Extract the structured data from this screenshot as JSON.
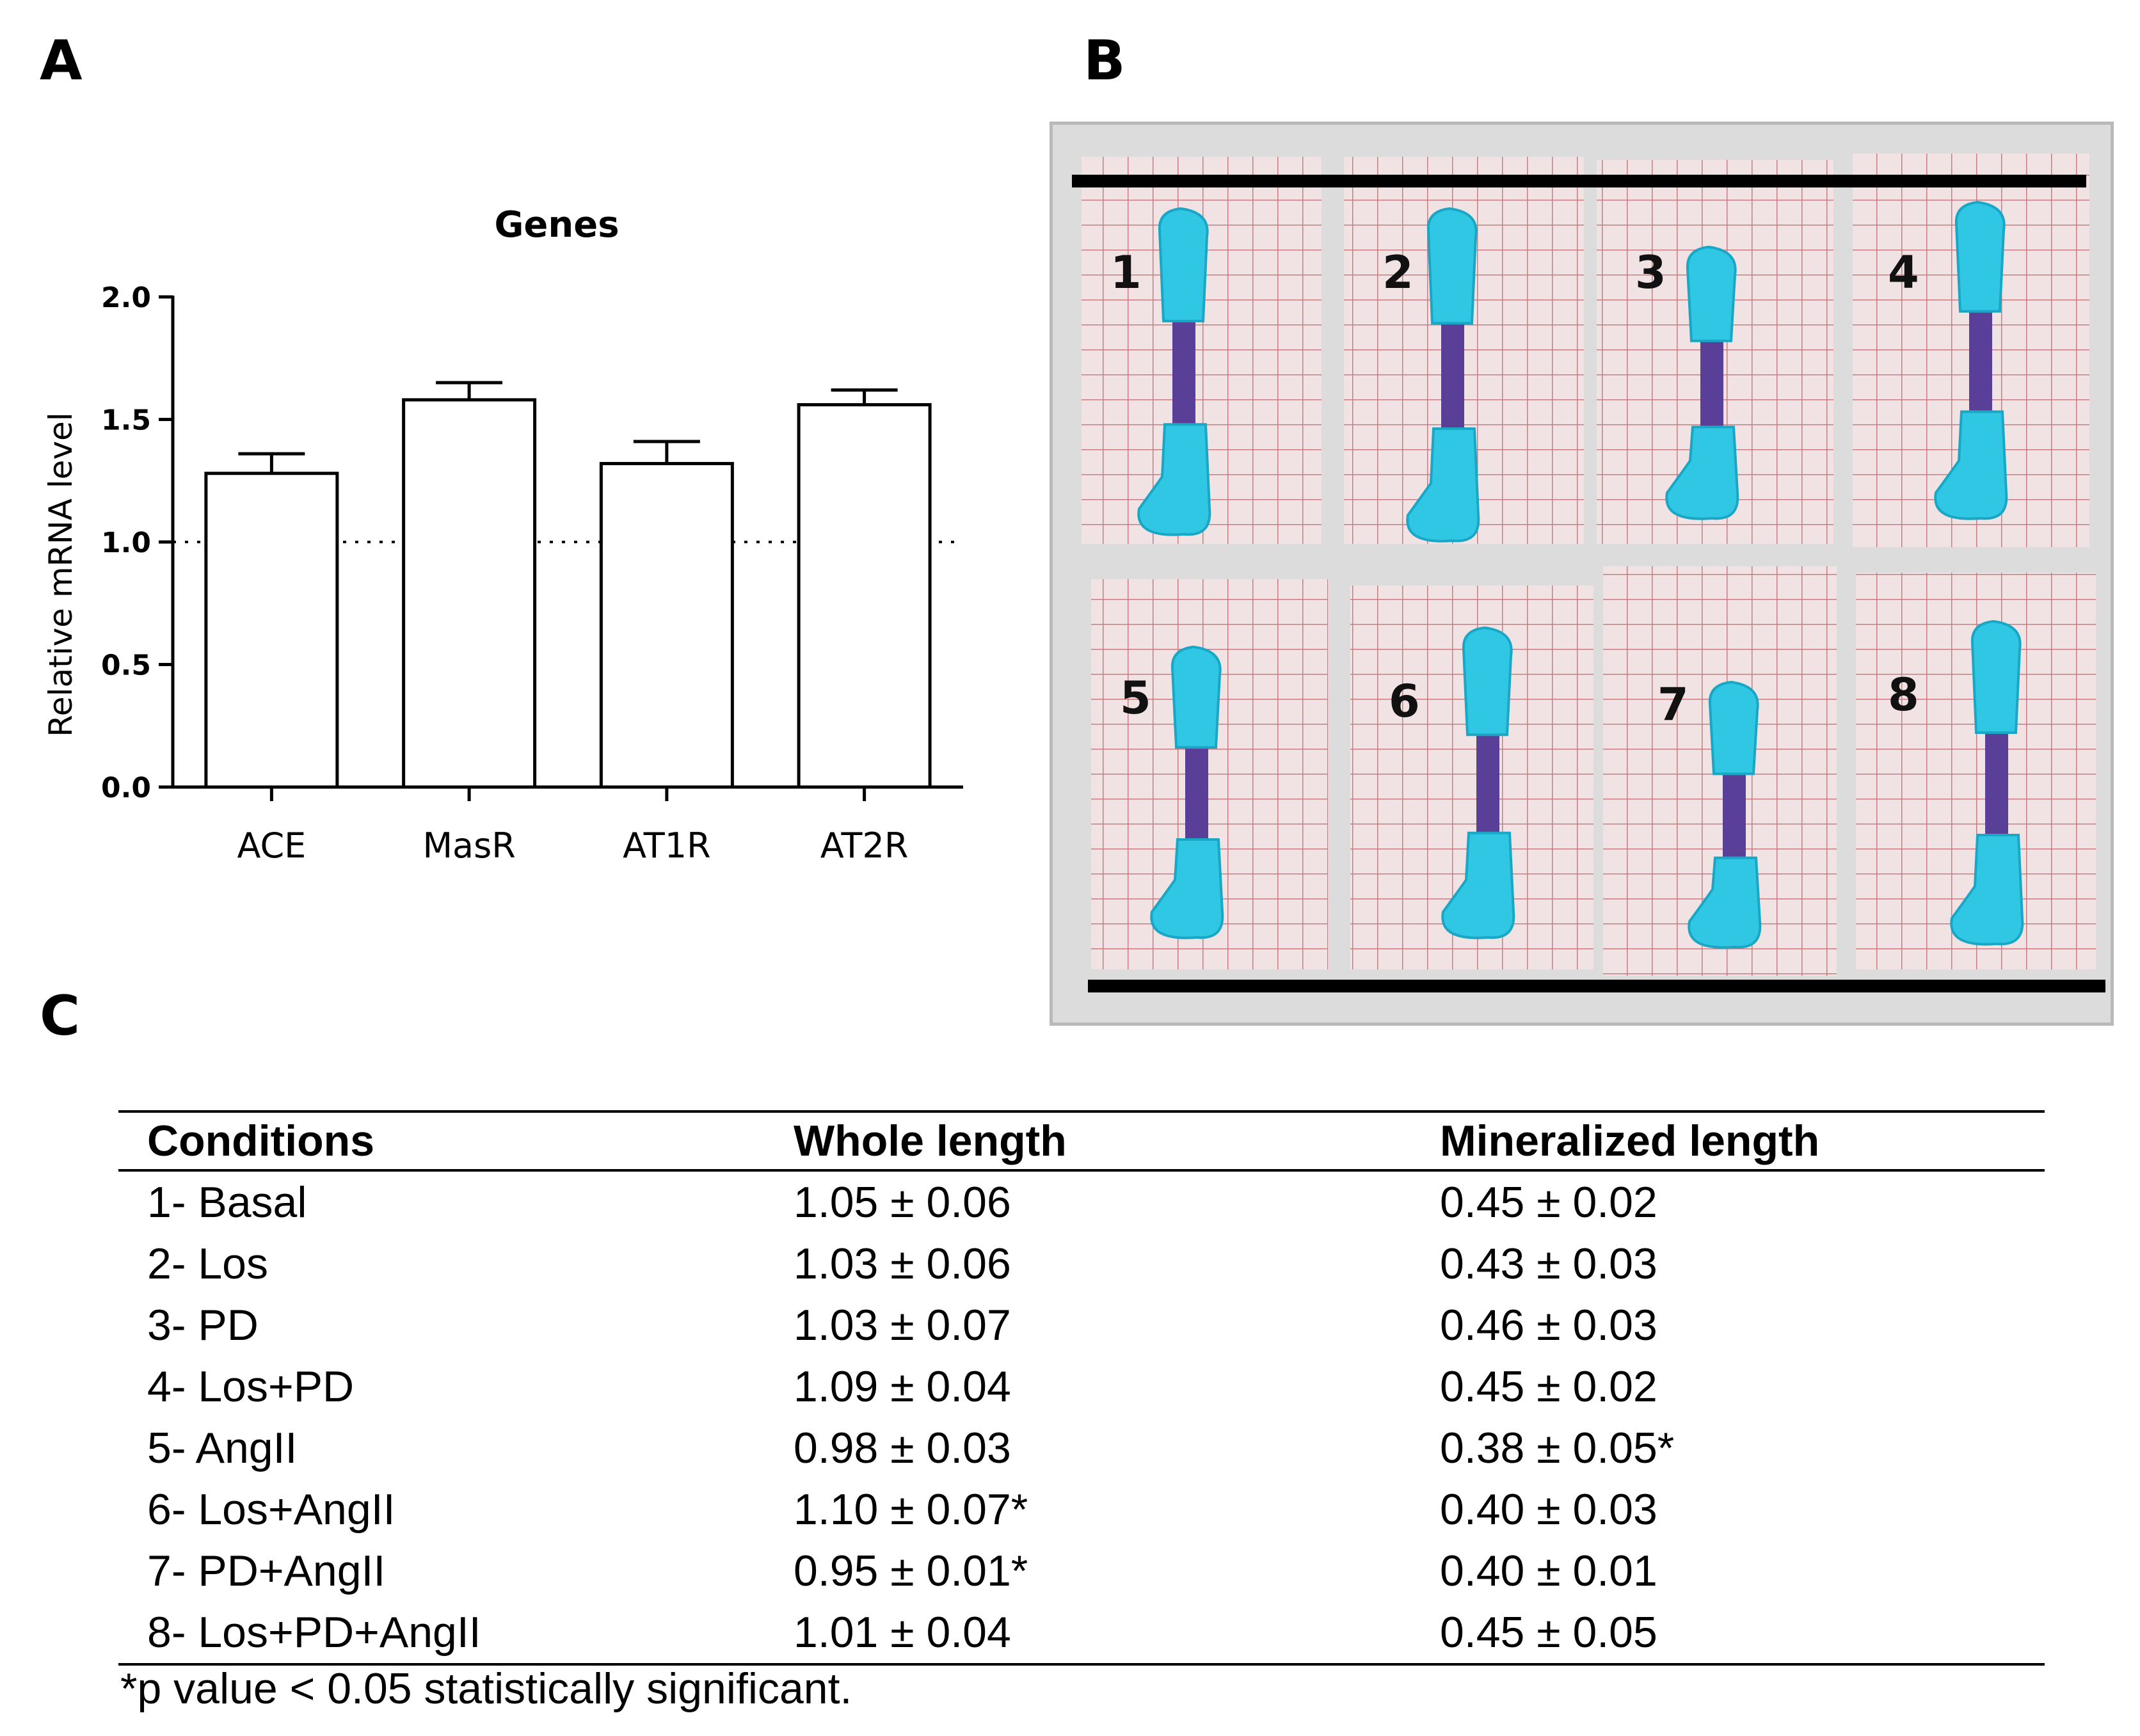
{
  "panels": {
    "a": "A",
    "b": "B",
    "c": "C"
  },
  "chart_data": {
    "type": "bar",
    "title": "Genes",
    "xlabel": "",
    "ylabel": "Relative mRNA level",
    "categories": [
      "ACE",
      "MasR",
      "AT1R",
      "AT2R"
    ],
    "values": [
      1.28,
      1.58,
      1.32,
      1.56
    ],
    "errors": [
      0.08,
      0.07,
      0.09,
      0.06
    ],
    "ylim": [
      0.0,
      2.0
    ],
    "yticks": [
      "0.0",
      "0.5",
      "1.0",
      "1.5",
      "2.0"
    ],
    "reference_line": 1.0,
    "grid": false,
    "legend": "none"
  },
  "photo": {
    "labels": [
      "1",
      "2",
      "3",
      "4",
      "5",
      "6",
      "7",
      "8"
    ],
    "colors": {
      "frame": "#dcdcdc",
      "paper": "#f1e3e3",
      "grid": "#c77c82",
      "cartilage": "#2fc7e4",
      "bone": "#5a3f99",
      "bar": "#000000"
    }
  },
  "table": {
    "headers": [
      "Conditions",
      "Whole length",
      "Mineralized length"
    ],
    "rows": [
      [
        "1- Basal",
        "1.05 ± 0.06",
        "0.45 ± 0.02"
      ],
      [
        "2- Los",
        "1.03 ± 0.06",
        "0.43 ± 0.03"
      ],
      [
        "3- PD",
        "1.03 ± 0.07",
        "0.46 ± 0.03"
      ],
      [
        "4- Los+PD",
        "1.09 ± 0.04",
        "0.45 ± 0.02"
      ],
      [
        "5- AngII",
        "0.98 ± 0.03",
        "0.38 ± 0.05*"
      ],
      [
        "6- Los+AngII",
        "1.10 ± 0.07*",
        "0.40 ± 0.03"
      ],
      [
        "7- PD+AngII",
        "0.95 ± 0.01*",
        "0.40 ± 0.01"
      ],
      [
        "8- Los+PD+AngII",
        "1.01 ± 0.04",
        "0.45 ± 0.05"
      ]
    ],
    "footnote": "*p value < 0.05 statistically significant."
  }
}
